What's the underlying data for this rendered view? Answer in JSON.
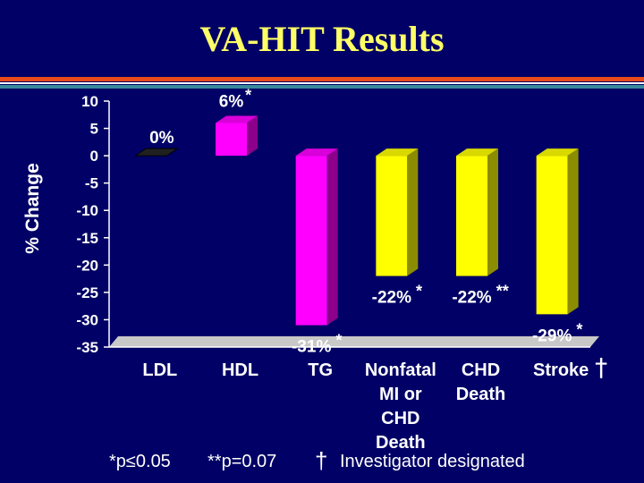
{
  "title": "VA-HIT Results",
  "colors": {
    "background": "#000066",
    "title": "#ffff66",
    "magenta": "#ff00ff",
    "yellow": "#ffff00",
    "floor": "#c8c8c8"
  },
  "chart_data": {
    "type": "bar",
    "title": "VA-HIT Results",
    "ylabel": "% Change",
    "xlabel": "",
    "ylim": [
      -35,
      10
    ],
    "yticks": [
      10,
      5,
      0,
      -5,
      -10,
      -15,
      -20,
      -25,
      -30,
      -35
    ],
    "categories": [
      {
        "lines": [
          "LDL"
        ],
        "value": 0,
        "label": "0%",
        "mark": "",
        "color": "#303030"
      },
      {
        "lines": [
          "HDL"
        ],
        "value": 6,
        "label": "6%",
        "mark": "*",
        "color": "#ff00ff"
      },
      {
        "lines": [
          "TG"
        ],
        "value": -31,
        "label": "-31%",
        "mark": "*",
        "color": "#ff00ff"
      },
      {
        "lines": [
          "Nonfatal",
          "MI or",
          "CHD",
          "Death"
        ],
        "value": -22,
        "label": "-22%",
        "mark": "*",
        "color": "#ffff00"
      },
      {
        "lines": [
          "CHD",
          "Death"
        ],
        "value": -22,
        "label": "-22%",
        "mark": "**",
        "color": "#ffff00"
      },
      {
        "lines": [
          "Stroke"
        ],
        "value": -29,
        "label": "-29%",
        "mark": "*",
        "color": "#ffff00"
      }
    ],
    "dagger_category": "Stroke",
    "grid": false
  },
  "footer": {
    "sig1": "*p≤0.05",
    "sig2": "**p=0.07",
    "dagger": "†",
    "note": "Investigator designated"
  }
}
